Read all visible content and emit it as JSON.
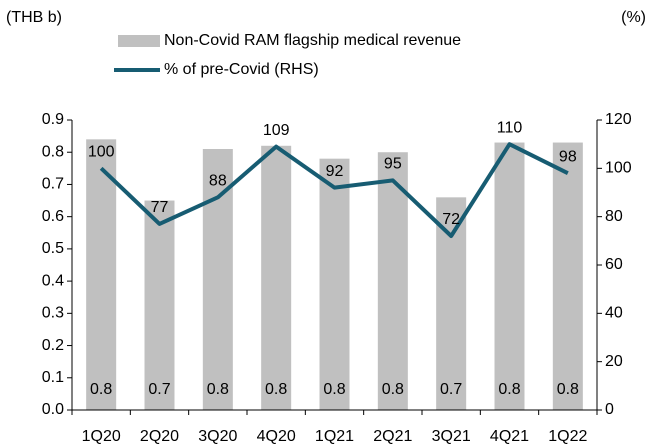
{
  "chart_data": {
    "type": "bar_line",
    "y_label": "(THB b)",
    "y2_label": "(%)",
    "categories": [
      "1Q20",
      "2Q20",
      "3Q20",
      "4Q20",
      "1Q21",
      "2Q21",
      "3Q21",
      "4Q21",
      "1Q22"
    ],
    "series": [
      {
        "name": "Non-Covid RAM flagship medical revenue",
        "type": "bar",
        "color": "#c0c0c0",
        "values": [
          0.84,
          0.65,
          0.81,
          0.82,
          0.78,
          0.8,
          0.66,
          0.83,
          0.83
        ],
        "value_labels": [
          "0.8",
          "0.7",
          "0.8",
          "0.8",
          "0.8",
          "0.8",
          "0.7",
          "0.8",
          "0.8"
        ]
      },
      {
        "name": "% of pre-Covid (RHS)",
        "type": "line",
        "color": "#175c72",
        "axis": "y2",
        "values": [
          100,
          77,
          88,
          109,
          92,
          95,
          72,
          110,
          98
        ]
      }
    ],
    "ylim": [
      0,
      0.9
    ],
    "yticks": [
      {
        "value": 0,
        "label": "0.0"
      },
      0.1,
      0.2,
      0.3,
      0.4,
      0.5,
      0.6,
      0.7,
      0.8,
      0.9
    ],
    "y2lim": [
      0,
      120
    ],
    "y2ticks": [
      0,
      20,
      40,
      60,
      80,
      100,
      120
    ],
    "grid": false
  }
}
